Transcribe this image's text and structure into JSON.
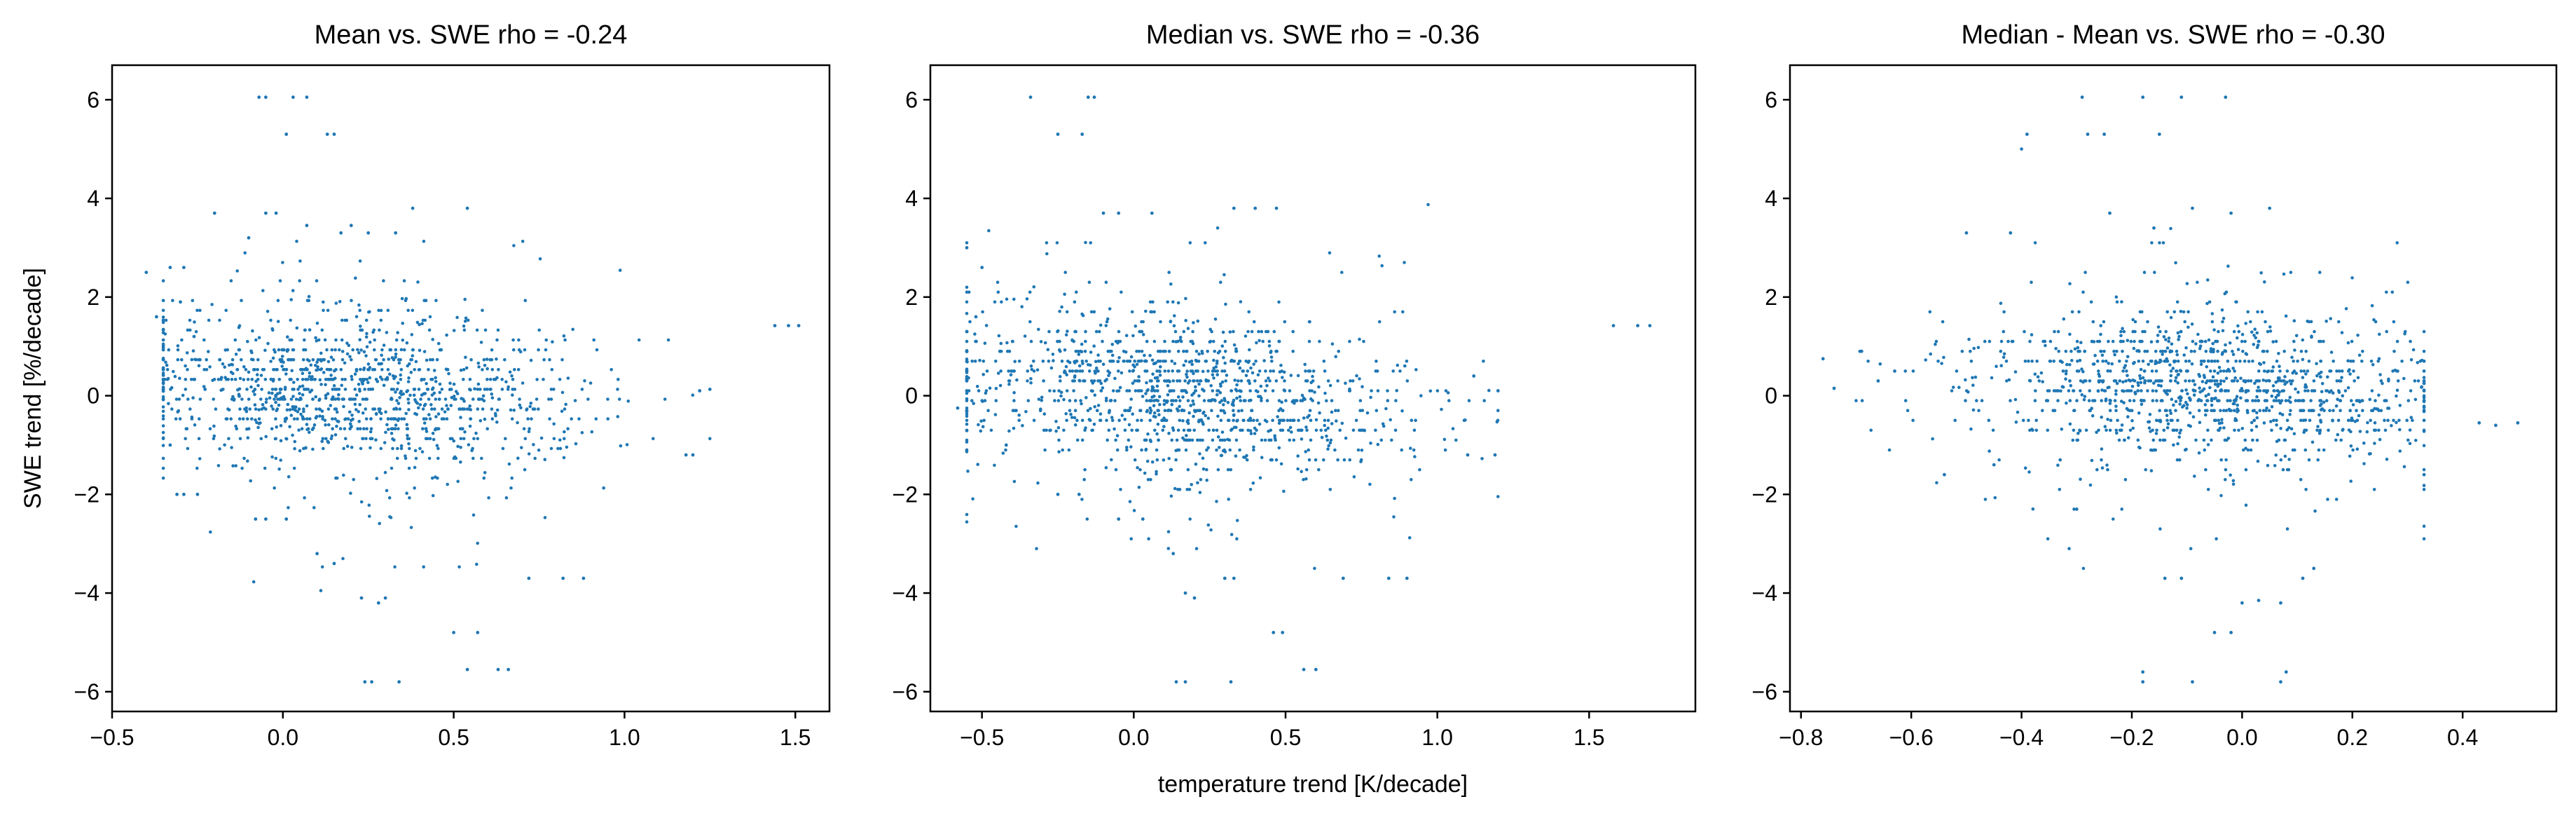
{
  "figure": {
    "colors": {
      "point": "#1f77b4",
      "axes": "#000000"
    },
    "xlabel": "temperature trend [K/decade]",
    "ylabel": "SWE trend [%/decade]"
  },
  "chart_data": [
    {
      "type": "scatter",
      "title": "Mean vs. SWE  rho = -0.24",
      "xlim": [
        -0.5,
        1.6
      ],
      "ylim": [
        -6.4,
        6.7
      ],
      "xticks": [
        -0.5,
        0.0,
        0.5,
        1.0,
        1.5
      ],
      "xtick_labels": [
        "−0.5",
        "0.0",
        "0.5",
        "1.0",
        "1.5"
      ],
      "yticks": [
        -6,
        -4,
        -2,
        0,
        2,
        4,
        6
      ],
      "ytick_labels": [
        "−6",
        "−4",
        "−2",
        "0",
        "2",
        "4",
        "6"
      ],
      "ylabel": "SWE trend [%/decade]",
      "grid": false,
      "rho": -0.24,
      "cluster": {
        "n": 1300,
        "x_range": [
          -0.35,
          1.25
        ],
        "x_center": 0.22,
        "y_center": 0.1
      },
      "points": [
        [
          -0.07,
          6.05
        ],
        [
          -0.05,
          6.05
        ],
        [
          0.03,
          6.05
        ],
        [
          0.07,
          6.05
        ],
        [
          0.01,
          5.3
        ],
        [
          0.13,
          5.3
        ],
        [
          0.15,
          5.3
        ],
        [
          -0.2,
          3.7
        ],
        [
          -0.05,
          3.7
        ],
        [
          -0.02,
          3.7
        ],
        [
          0.07,
          3.45
        ],
        [
          0.2,
          3.45
        ],
        [
          0.33,
          3.3
        ],
        [
          0.38,
          3.8
        ],
        [
          0.54,
          3.8
        ],
        [
          0.17,
          3.3
        ],
        [
          0.25,
          3.3
        ],
        [
          -0.1,
          3.2
        ],
        [
          -0.4,
          2.5
        ],
        [
          -0.33,
          2.6
        ],
        [
          -0.29,
          2.6
        ],
        [
          -0.37,
          1.6
        ],
        [
          -0.3,
          1.9
        ],
        [
          -0.26,
          1.2
        ],
        [
          1.44,
          1.42
        ],
        [
          1.48,
          1.42
        ],
        [
          1.51,
          1.42
        ],
        [
          -0.33,
          -1.0
        ],
        [
          -0.31,
          -2.0
        ],
        [
          -0.29,
          -2.0
        ],
        [
          -0.25,
          -2.0
        ],
        [
          -0.08,
          -2.5
        ],
        [
          -0.05,
          -2.5
        ],
        [
          0.01,
          -2.5
        ],
        [
          0.1,
          -3.2
        ],
        [
          0.15,
          -3.4
        ],
        [
          0.23,
          -4.1
        ],
        [
          0.28,
          -4.2
        ],
        [
          0.3,
          -4.1
        ],
        [
          0.24,
          -5.8
        ],
        [
          0.26,
          -5.8
        ],
        [
          0.34,
          -5.8
        ],
        [
          0.54,
          -5.55
        ],
        [
          0.63,
          -5.55
        ],
        [
          0.66,
          -5.55
        ],
        [
          0.5,
          -4.8
        ],
        [
          0.57,
          -4.8
        ],
        [
          0.72,
          -3.7
        ],
        [
          0.82,
          -3.7
        ],
        [
          0.88,
          -3.7
        ],
        [
          1.18,
          -1.2
        ],
        [
          1.2,
          -1.2
        ],
        [
          1.25,
          0.13
        ],
        [
          1.22,
          0.1
        ]
      ]
    },
    {
      "type": "scatter",
      "title": "Median vs. SWE rho = -0.36",
      "xlim": [
        -0.67,
        1.85
      ],
      "ylim": [
        -6.4,
        6.7
      ],
      "xticks": [
        -0.5,
        0.0,
        0.5,
        1.0,
        1.5
      ],
      "xtick_labels": [
        "−0.5",
        "0.0",
        "0.5",
        "1.0",
        "1.5"
      ],
      "yticks": [
        -6,
        -4,
        -2,
        0,
        2,
        4,
        6
      ],
      "ytick_labels": [
        "−6",
        "−4",
        "−2",
        "0",
        "2",
        "4",
        "6"
      ],
      "xlabel": "temperature trend [K/decade]",
      "grid": false,
      "rho": -0.36,
      "cluster": {
        "n": 1300,
        "x_range": [
          -0.55,
          1.2
        ],
        "x_center": 0.15,
        "y_center": 0.05
      },
      "points": [
        [
          -0.34,
          6.05
        ],
        [
          -0.15,
          6.05
        ],
        [
          -0.13,
          6.05
        ],
        [
          -0.25,
          5.3
        ],
        [
          -0.17,
          5.3
        ],
        [
          -0.1,
          3.7
        ],
        [
          -0.05,
          3.7
        ],
        [
          0.06,
          3.7
        ],
        [
          0.33,
          3.8
        ],
        [
          0.4,
          3.8
        ],
        [
          0.47,
          3.8
        ],
        [
          -0.55,
          3.0
        ],
        [
          -0.5,
          2.6
        ],
        [
          -0.58,
          -0.25
        ],
        [
          -0.52,
          1.6
        ],
        [
          1.58,
          1.42
        ],
        [
          1.66,
          1.42
        ],
        [
          1.7,
          1.42
        ],
        [
          -0.42,
          -1.0
        ],
        [
          -0.25,
          -2.0
        ],
        [
          -0.18,
          -2.0
        ],
        [
          -0.05,
          -2.5
        ],
        [
          0.03,
          -2.5
        ],
        [
          0.13,
          -3.2
        ],
        [
          0.17,
          -4.0
        ],
        [
          0.2,
          -4.1
        ],
        [
          0.3,
          -3.7
        ],
        [
          0.33,
          -3.7
        ],
        [
          0.14,
          -5.8
        ],
        [
          0.17,
          -5.8
        ],
        [
          0.32,
          -5.8
        ],
        [
          0.56,
          -5.55
        ],
        [
          0.6,
          -5.55
        ],
        [
          0.46,
          -4.8
        ],
        [
          0.49,
          -4.8
        ],
        [
          0.69,
          -3.7
        ],
        [
          0.84,
          -3.7
        ],
        [
          0.9,
          -3.7
        ],
        [
          1.1,
          -1.2
        ],
        [
          1.19,
          -1.2
        ],
        [
          1.2,
          0.1
        ],
        [
          1.12,
          0.4
        ]
      ]
    },
    {
      "type": "scatter",
      "title": "Median - Mean vs. SWE rho = -0.30",
      "xlim": [
        -0.82,
        0.57
      ],
      "ylim": [
        -6.4,
        6.7
      ],
      "xticks": [
        -0.8,
        -0.6,
        -0.4,
        -0.2,
        0.0,
        0.2,
        0.4
      ],
      "xtick_labels": [
        "−0.8",
        "−0.6",
        "−0.4",
        "−0.2",
        "0.0",
        "0.2",
        "0.4"
      ],
      "yticks": [
        -6,
        -4,
        -2,
        0,
        2,
        4,
        6
      ],
      "ytick_labels": [
        "−6",
        "−4",
        "−2",
        "0",
        "2",
        "4",
        "6"
      ],
      "grid": false,
      "rho": -0.3,
      "cluster": {
        "n": 1300,
        "x_range": [
          -0.7,
          0.33
        ],
        "x_center": -0.06,
        "y_center": 0.15
      },
      "points": [
        [
          -0.29,
          6.05
        ],
        [
          -0.18,
          6.05
        ],
        [
          -0.11,
          6.05
        ],
        [
          -0.03,
          6.05
        ],
        [
          -0.39,
          5.3
        ],
        [
          -0.28,
          5.3
        ],
        [
          -0.25,
          5.3
        ],
        [
          -0.15,
          5.3
        ],
        [
          -0.24,
          3.7
        ],
        [
          -0.16,
          3.4
        ],
        [
          -0.09,
          3.8
        ],
        [
          -0.02,
          3.7
        ],
        [
          0.05,
          3.8
        ],
        [
          -0.5,
          3.3
        ],
        [
          -0.42,
          3.3
        ],
        [
          -0.76,
          0.75
        ],
        [
          -0.74,
          0.15
        ],
        [
          -0.69,
          0.9
        ],
        [
          -0.66,
          0.3
        ],
        [
          -0.63,
          0.5
        ],
        [
          0.43,
          -0.55
        ],
        [
          0.46,
          -0.6
        ],
        [
          0.5,
          -0.55
        ],
        [
          0.33,
          -1.6
        ],
        [
          -0.54,
          -1.6
        ],
        [
          -0.45,
          -1.4
        ],
        [
          -0.3,
          -2.3
        ],
        [
          -0.33,
          -1.3
        ],
        [
          -0.18,
          -5.6
        ],
        [
          -0.18,
          -5.8
        ],
        [
          -0.09,
          -5.8
        ],
        [
          0.07,
          -5.8
        ],
        [
          0.08,
          -5.6
        ],
        [
          -0.02,
          -4.8
        ],
        [
          -0.05,
          -4.8
        ],
        [
          0.0,
          -4.2
        ],
        [
          0.03,
          -4.15
        ],
        [
          0.07,
          -4.2
        ],
        [
          -0.11,
          -3.7
        ],
        [
          -0.14,
          -3.7
        ],
        [
          0.11,
          -3.7
        ],
        [
          0.13,
          -3.5
        ]
      ]
    }
  ]
}
